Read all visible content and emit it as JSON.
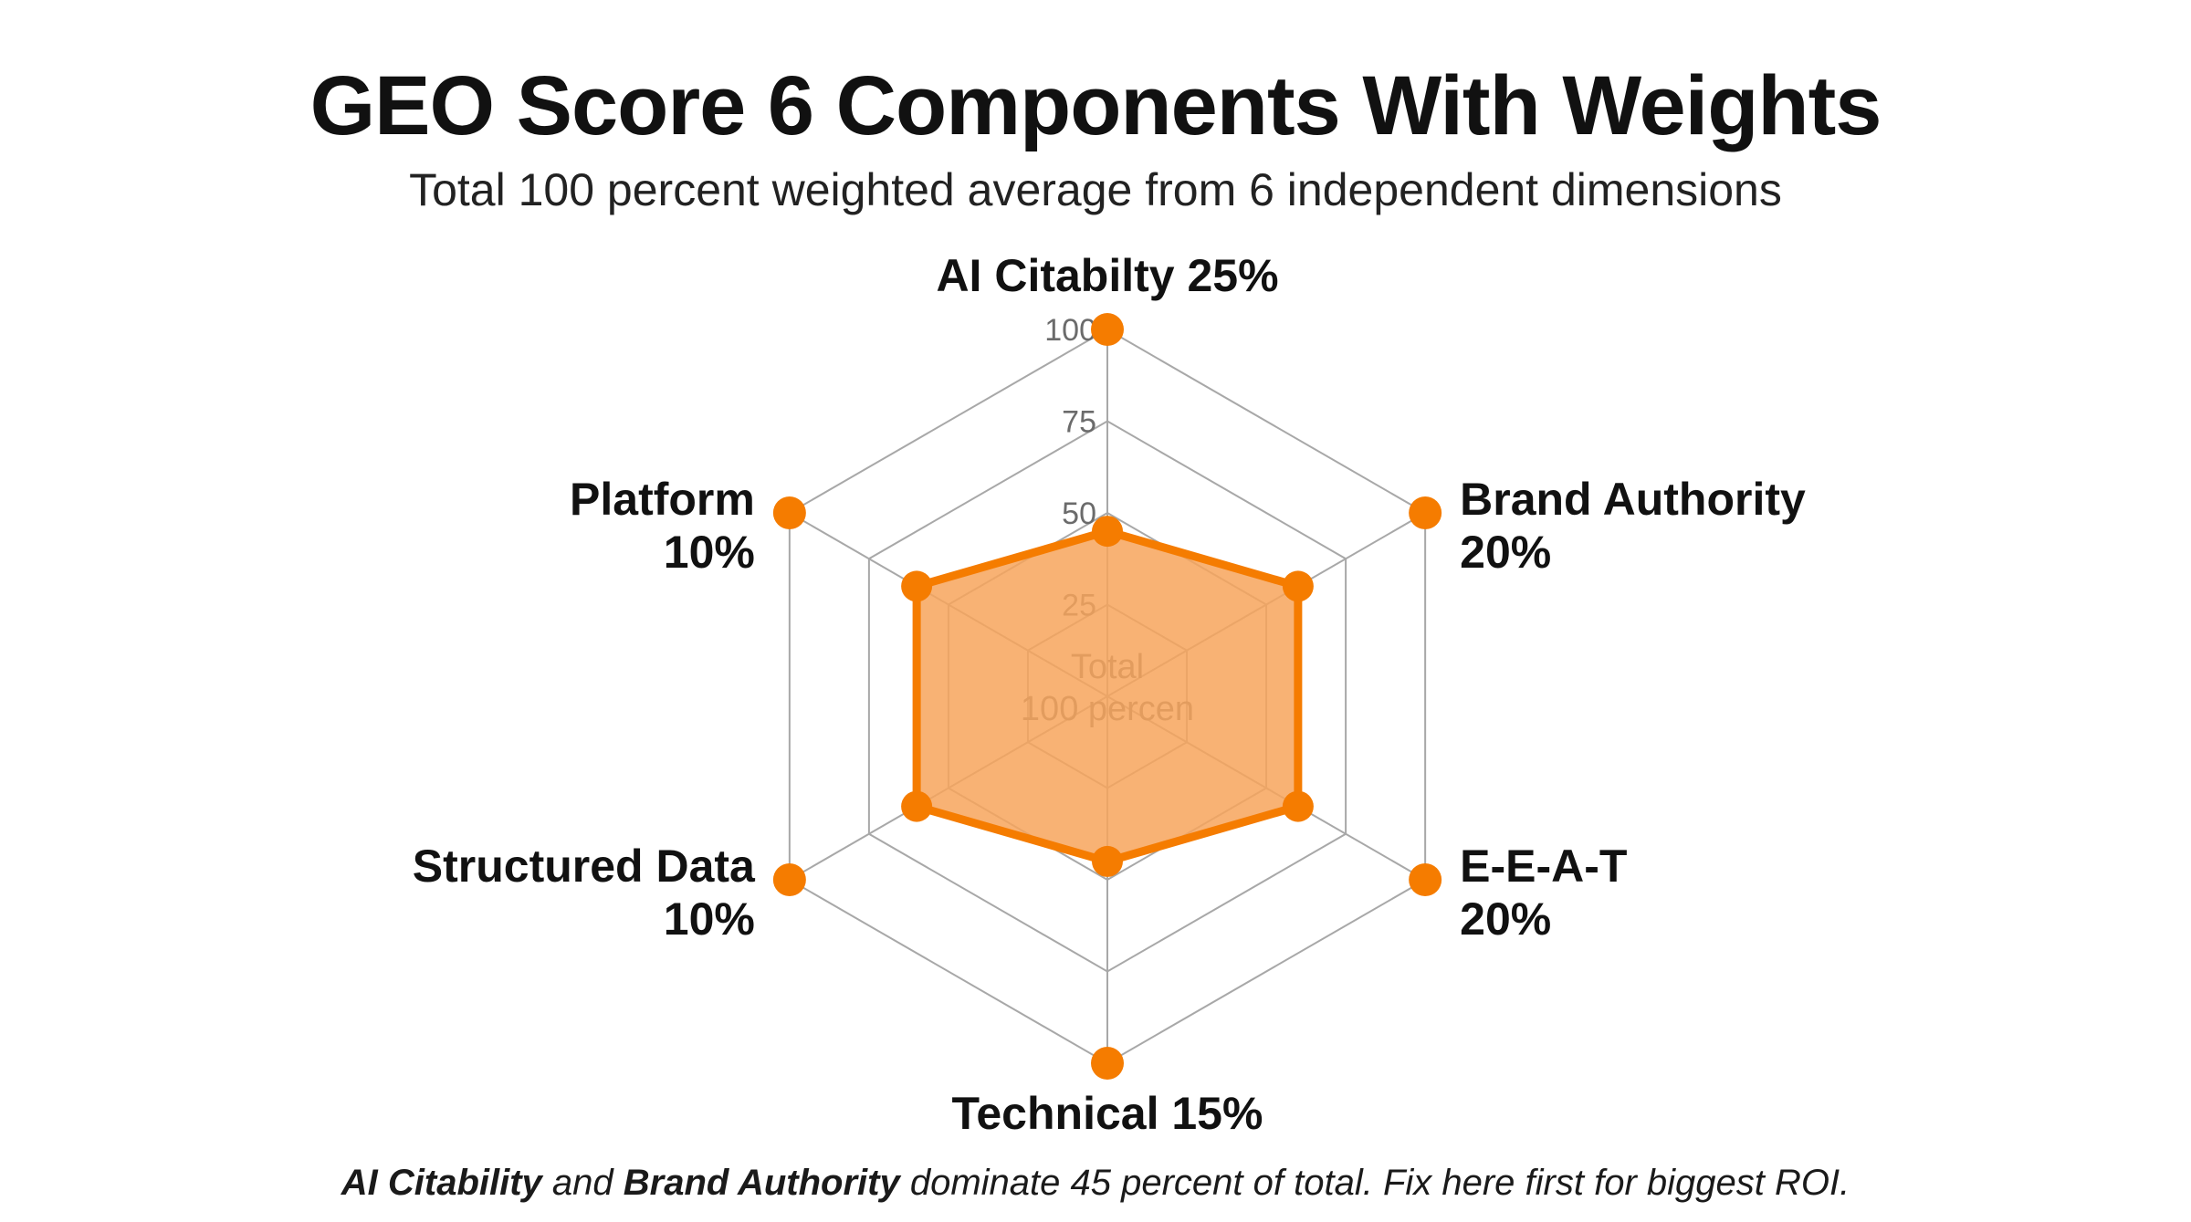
{
  "chart_data": {
    "type": "radar",
    "title": "GEO Score 6 Components With Weights",
    "subtitle": "Total 100 percent weighted average from 6 independent dimensions",
    "center_label": [
      "Total",
      "100 percen"
    ],
    "rlim": [
      0,
      100
    ],
    "ticks": [
      25,
      50,
      75,
      100
    ],
    "grid": true,
    "axes": [
      {
        "name": "AI Citabilty 25%",
        "lines": [
          "AI Citabilty 25%"
        ],
        "value": 45
      },
      {
        "name": "Brand Authority 20%",
        "lines": [
          "Brand Authority",
          "20%"
        ],
        "value": 60
      },
      {
        "name": "E-E-A-T 20%",
        "lines": [
          "E-E-A-T",
          "20%"
        ],
        "value": 60
      },
      {
        "name": "Technical 15%",
        "lines": [
          "Technical 15%"
        ],
        "value": 45
      },
      {
        "name": "Structured Data 10%",
        "lines": [
          "Structured Data",
          "10%"
        ],
        "value": 60
      },
      {
        "name": "Platform 10%",
        "lines": [
          "Platform",
          "10%"
        ],
        "value": 60
      }
    ],
    "colors": {
      "fill": "#f7a55c",
      "line": "#f57c00",
      "marker": "#f57c00",
      "grid": "#a8a8a8"
    }
  },
  "footnote": {
    "bold1": "AI Citability",
    "text1": " and ",
    "bold2": "Brand Authority",
    "text2": " dominate 45 percent of total. Fix here first for biggest ROI."
  }
}
